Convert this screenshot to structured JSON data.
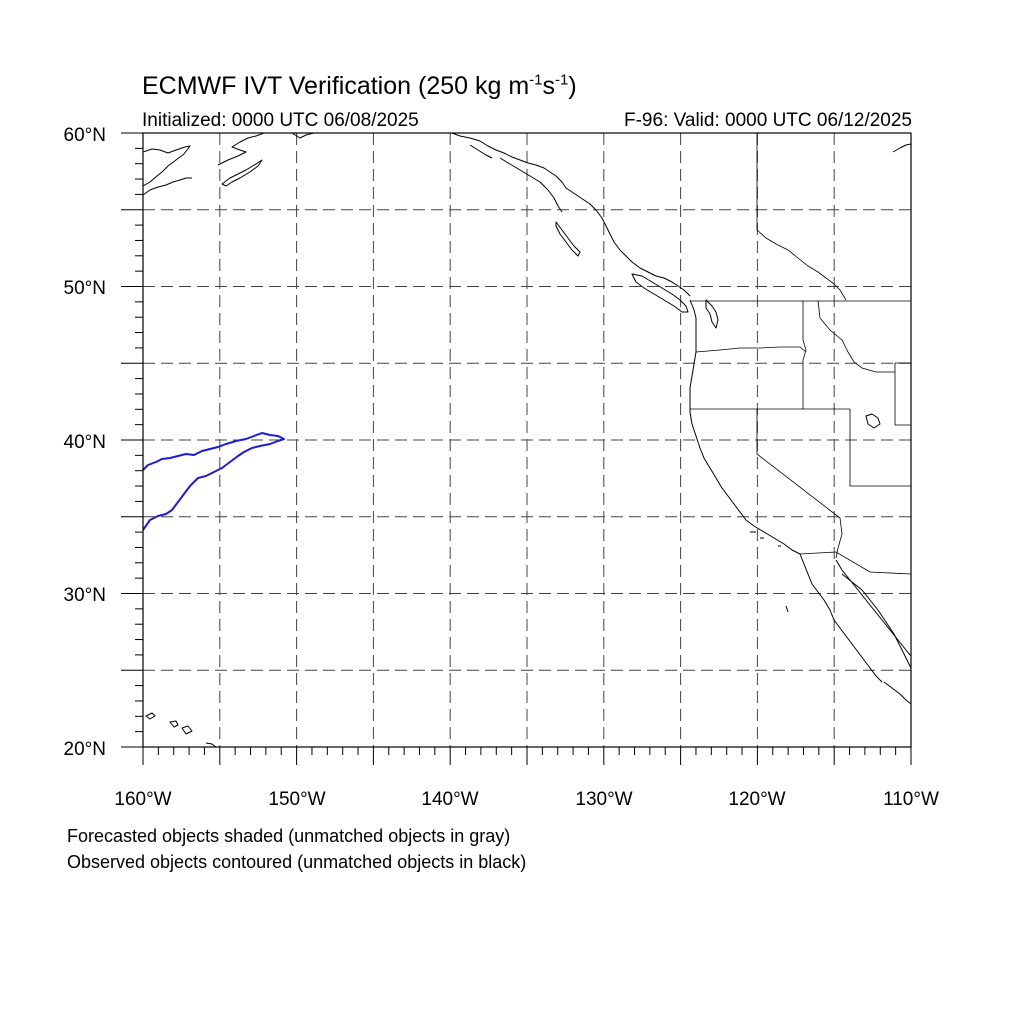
{
  "title": {
    "prefix": "ECMWF IVT Verification (250 kg m",
    "exp1": "-1",
    "mid": "s",
    "exp2": "-1",
    "suffix": ")"
  },
  "initialized": "Initialized: 0000 UTC 06/08/2025",
  "valid": "F-96: Valid: 0000 UTC 06/12/2025",
  "map": {
    "lon_range": [
      -160,
      -110
    ],
    "lat_range": [
      20,
      60
    ],
    "grid_spacing_deg": 5,
    "grid_style": "dashed",
    "lat_labels": [
      "60°N",
      "50°N",
      "40°N",
      "30°N",
      "20°N"
    ],
    "lon_labels": [
      "160°W",
      "150°W",
      "140°W",
      "130°W",
      "120°W",
      "110°W"
    ],
    "observed_object_color": "#1c1cdc",
    "coastline_color": "#000000"
  },
  "captions": {
    "line1": "Forecasted objects shaded (unmatched objects in gray)",
    "line2": "Observed objects contoured (unmatched objects in black)"
  }
}
